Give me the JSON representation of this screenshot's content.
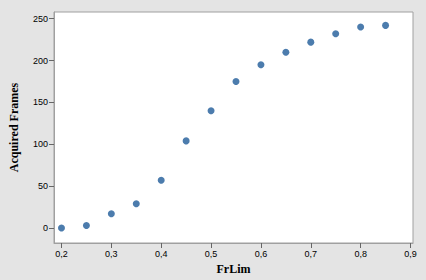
{
  "chart_data": {
    "type": "scatter",
    "x_label": "FrLim",
    "y_label": "Acquired Frames",
    "x": [
      0.2,
      0.25,
      0.3,
      0.35,
      0.4,
      0.45,
      0.5,
      0.55,
      0.6,
      0.65,
      0.7,
      0.75,
      0.8,
      0.85
    ],
    "values": [
      0,
      3,
      17,
      29,
      57,
      104,
      140,
      175,
      195,
      210,
      222,
      232,
      240,
      242
    ],
    "color": "#1f5b98",
    "marker": "circle",
    "xlim": [
      0.185,
      0.905
    ],
    "ylim": [
      -18,
      258
    ],
    "xticks": [
      {
        "value": 0.2,
        "label": "0,2"
      },
      {
        "value": 0.3,
        "label": "0,3"
      },
      {
        "value": 0.4,
        "label": "0,4"
      },
      {
        "value": 0.5,
        "label": "0,5"
      },
      {
        "value": 0.6,
        "label": "0,6"
      },
      {
        "value": 0.7,
        "label": "0,7"
      },
      {
        "value": 0.8,
        "label": "0,8"
      },
      {
        "value": 0.9,
        "label": "0,9"
      }
    ],
    "yticks": [
      0,
      50,
      100,
      150,
      200,
      250
    ],
    "grid": false
  }
}
